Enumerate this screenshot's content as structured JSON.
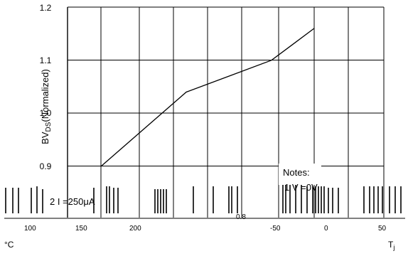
{
  "chart_data": {
    "type": "line",
    "ylabel": {
      "main": "BV",
      "sub": "DS",
      "rest": "(Normalized)"
    },
    "y_ticks": [
      "0.9",
      "1.0",
      "1.1",
      "1.2"
    ],
    "ylim": [
      0.9,
      1.2
    ],
    "xlim": [
      0,
      5
    ],
    "series": [
      {
        "x": [
          0,
          1,
          2,
          3,
          4,
          4.5,
          5
        ],
        "y": [
          0.9,
          0.97,
          1.04,
          1.07,
          1.1,
          1.13,
          1.16
        ]
      }
    ],
    "grid": true,
    "notes": {
      "title": "Notes:",
      "line1": "1  V     =0V",
      "line2": "2  I  =250μA"
    },
    "x_fragments": [
      "100",
      "150",
      "200",
      "0.8",
      "-50",
      "0",
      "50"
    ],
    "x_unit": "T",
    "x_unit_sub": "j",
    "left_unit": "°C"
  },
  "colors": {
    "line": "#000000",
    "grid": "#000000",
    "background": "#ffffff"
  }
}
